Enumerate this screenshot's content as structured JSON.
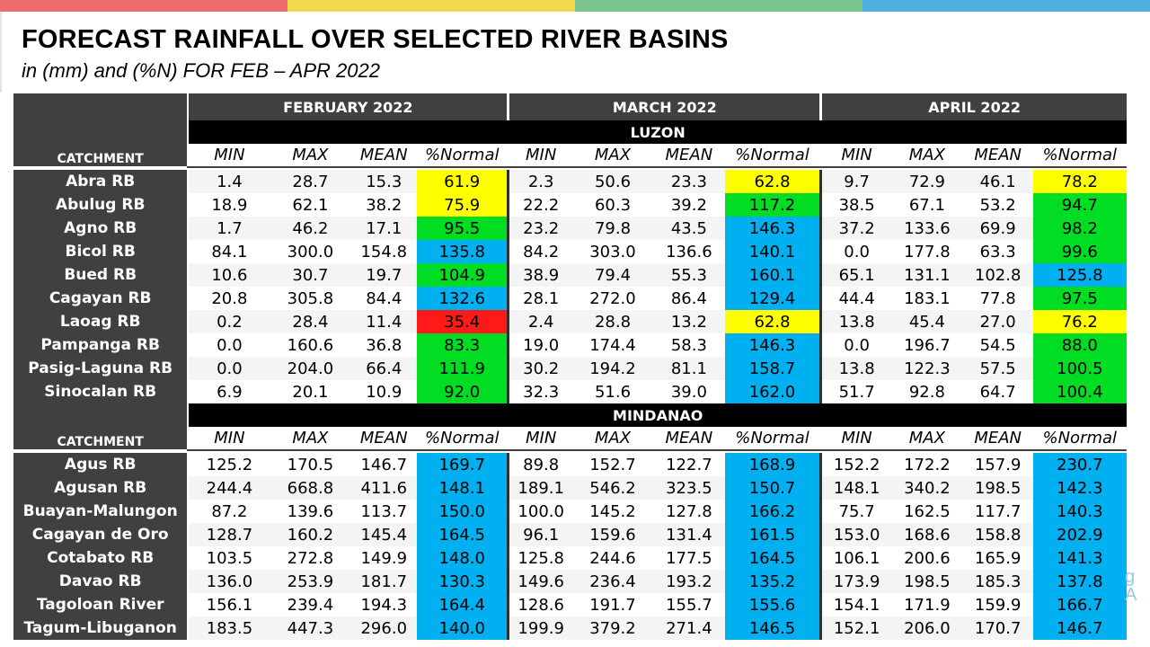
{
  "header": {
    "title": "FORECAST RAINFALL OVER SELECTED RIVER BASINS",
    "subtitle": "in (mm) and (%N) FOR FEB – APR 2022"
  },
  "colors": {
    "top_bar": [
      "#ee6b6b",
      "#f2d84e",
      "#7cc48e",
      "#4fb0e0"
    ],
    "below_normal": "#ff1a1a",
    "near_normal_low": "#ffff00",
    "near_normal": "#00dd22",
    "above_normal": "#00b0f0"
  },
  "table": {
    "months": [
      "FEBRUARY 2022",
      "MARCH 2022",
      "APRIL 2022"
    ],
    "catchment_label": "CATCHMENT",
    "columns": [
      "MIN",
      "MAX",
      "MEAN",
      "%Normal"
    ],
    "regions": [
      {
        "name": "LUZON",
        "rows": [
          {
            "name": "Abra RB",
            "values": [
              [
                "1.4",
                "28.7",
                "15.3",
                "61.9"
              ],
              [
                "2.3",
                "50.6",
                "23.3",
                "62.8"
              ],
              [
                "9.7",
                "72.9",
                "46.1",
                "78.2"
              ]
            ],
            "category": [
              "near_normal_low",
              "near_normal_low",
              "near_normal_low"
            ]
          },
          {
            "name": "Abulug RB",
            "values": [
              [
                "18.9",
                "62.1",
                "38.2",
                "75.9"
              ],
              [
                "22.2",
                "60.3",
                "39.2",
                "117.2"
              ],
              [
                "38.5",
                "67.1",
                "53.2",
                "94.7"
              ]
            ],
            "category": [
              "near_normal_low",
              "near_normal",
              "near_normal"
            ]
          },
          {
            "name": "Agno RB",
            "values": [
              [
                "1.7",
                "46.2",
                "17.1",
                "95.5"
              ],
              [
                "23.2",
                "79.8",
                "43.5",
                "146.3"
              ],
              [
                "37.2",
                "133.6",
                "69.9",
                "98.2"
              ]
            ],
            "category": [
              "near_normal",
              "above_normal",
              "near_normal"
            ]
          },
          {
            "name": "Bicol RB",
            "values": [
              [
                "84.1",
                "300.0",
                "154.8",
                "135.8"
              ],
              [
                "84.2",
                "303.0",
                "136.6",
                "140.1"
              ],
              [
                "0.0",
                "177.8",
                "63.3",
                "99.6"
              ]
            ],
            "category": [
              "above_normal",
              "above_normal",
              "near_normal"
            ]
          },
          {
            "name": "Bued RB",
            "values": [
              [
                "10.6",
                "30.7",
                "19.7",
                "104.9"
              ],
              [
                "38.9",
                "79.4",
                "55.3",
                "160.1"
              ],
              [
                "65.1",
                "131.1",
                "102.8",
                "125.8"
              ]
            ],
            "category": [
              "near_normal",
              "above_normal",
              "above_normal"
            ]
          },
          {
            "name": "Cagayan RB",
            "values": [
              [
                "20.8",
                "305.8",
                "84.4",
                "132.6"
              ],
              [
                "28.1",
                "272.0",
                "86.4",
                "129.4"
              ],
              [
                "44.4",
                "183.1",
                "77.8",
                "97.5"
              ]
            ],
            "category": [
              "above_normal",
              "above_normal",
              "near_normal"
            ]
          },
          {
            "name": "Laoag RB",
            "values": [
              [
                "0.2",
                "28.4",
                "11.4",
                "35.4"
              ],
              [
                "2.4",
                "28.8",
                "13.2",
                "62.8"
              ],
              [
                "13.8",
                "45.4",
                "27.0",
                "76.2"
              ]
            ],
            "category": [
              "below_normal",
              "near_normal_low",
              "near_normal_low"
            ]
          },
          {
            "name": "Pampanga RB",
            "values": [
              [
                "0.0",
                "160.6",
                "36.8",
                "83.3"
              ],
              [
                "19.0",
                "174.4",
                "58.3",
                "146.3"
              ],
              [
                "0.0",
                "196.7",
                "54.5",
                "88.0"
              ]
            ],
            "category": [
              "near_normal",
              "above_normal",
              "near_normal"
            ]
          },
          {
            "name": "Pasig-Laguna RB",
            "values": [
              [
                "0.0",
                "204.0",
                "66.4",
                "111.9"
              ],
              [
                "30.2",
                "194.2",
                "81.1",
                "158.7"
              ],
              [
                "13.8",
                "122.3",
                "57.5",
                "100.5"
              ]
            ],
            "category": [
              "near_normal",
              "above_normal",
              "near_normal"
            ]
          },
          {
            "name": "Sinocalan RB",
            "values": [
              [
                "6.9",
                "20.1",
                "10.9",
                "92.0"
              ],
              [
                "32.3",
                "51.6",
                "39.0",
                "162.0"
              ],
              [
                "51.7",
                "92.8",
                "64.7",
                "100.4"
              ]
            ],
            "category": [
              "near_normal",
              "above_normal",
              "near_normal"
            ]
          }
        ]
      },
      {
        "name": "MINDANAO",
        "rows": [
          {
            "name": "Agus RB",
            "values": [
              [
                "125.2",
                "170.5",
                "146.7",
                "169.7"
              ],
              [
                "89.8",
                "152.7",
                "122.7",
                "168.9"
              ],
              [
                "152.2",
                "172.2",
                "157.9",
                "230.7"
              ]
            ],
            "category": [
              "above_normal",
              "above_normal",
              "above_normal"
            ]
          },
          {
            "name": "Agusan RB",
            "values": [
              [
                "244.4",
                "668.8",
                "411.6",
                "148.1"
              ],
              [
                "189.1",
                "546.2",
                "323.5",
                "150.7"
              ],
              [
                "148.1",
                "340.2",
                "198.5",
                "142.3"
              ]
            ],
            "category": [
              "above_normal",
              "above_normal",
              "above_normal"
            ]
          },
          {
            "name": "Buayan-Malungon",
            "values": [
              [
                "87.2",
                "139.6",
                "113.7",
                "150.0"
              ],
              [
                "100.0",
                "145.2",
                "127.8",
                "166.2"
              ],
              [
                "75.7",
                "162.5",
                "117.7",
                "140.3"
              ]
            ],
            "category": [
              "above_normal",
              "above_normal",
              "above_normal"
            ]
          },
          {
            "name": "Cagayan de Oro",
            "values": [
              [
                "128.7",
                "160.2",
                "145.4",
                "164.5"
              ],
              [
                "96.1",
                "159.6",
                "131.4",
                "161.5"
              ],
              [
                "153.0",
                "168.6",
                "158.8",
                "202.9"
              ]
            ],
            "category": [
              "above_normal",
              "above_normal",
              "above_normal"
            ]
          },
          {
            "name": "Cotabato RB",
            "values": [
              [
                "103.5",
                "272.8",
                "149.9",
                "148.0"
              ],
              [
                "125.8",
                "244.6",
                "177.5",
                "164.5"
              ],
              [
                "106.1",
                "200.6",
                "165.9",
                "141.3"
              ]
            ],
            "category": [
              "above_normal",
              "above_normal",
              "above_normal"
            ]
          },
          {
            "name": "Davao RB",
            "values": [
              [
                "136.0",
                "253.9",
                "181.7",
                "130.3"
              ],
              [
                "149.6",
                "236.4",
                "193.2",
                "135.2"
              ],
              [
                "173.9",
                "198.5",
                "185.3",
                "137.8"
              ]
            ],
            "category": [
              "above_normal",
              "above_normal",
              "above_normal"
            ]
          },
          {
            "name": "Tagoloan River",
            "values": [
              [
                "156.1",
                "239.4",
                "194.3",
                "164.4"
              ],
              [
                "128.6",
                "191.7",
                "155.7",
                "155.6"
              ],
              [
                "154.1",
                "171.9",
                "159.9",
                "166.7"
              ]
            ],
            "category": [
              "above_normal",
              "above_normal",
              "above_normal"
            ]
          },
          {
            "name": "Tagum-Libuganon",
            "values": [
              [
                "183.5",
                "447.3",
                "296.0",
                "140.0"
              ],
              [
                "199.9",
                "379.2",
                "271.4",
                "146.5"
              ],
              [
                "152.1",
                "206.0",
                "170.7",
                "146.7"
              ]
            ],
            "category": [
              "above_normal",
              "above_normal",
              "above_normal"
            ]
          }
        ]
      }
    ]
  }
}
